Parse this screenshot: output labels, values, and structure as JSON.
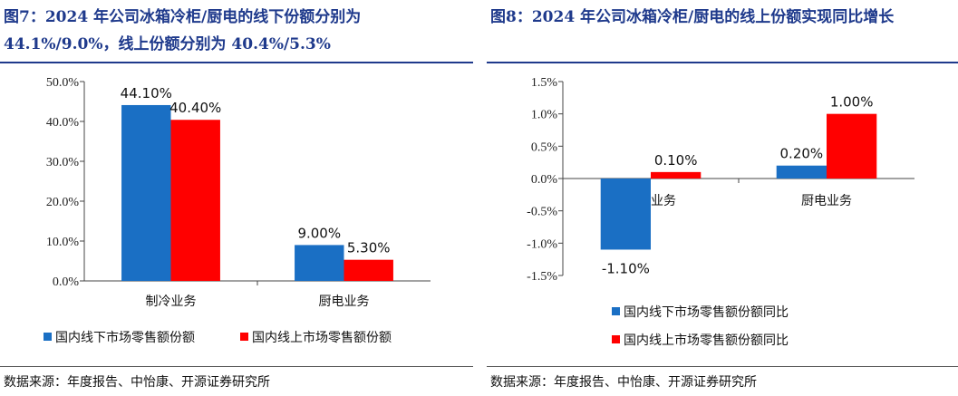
{
  "left": {
    "title": "图7：2024 年公司冰箱冷柜/厨电的线下份额分别为44.1%/9.0%，线上份额分别为 40.4%/5.3%",
    "source": "数据来源：年度报告、中怡康、开源证券研究所"
  },
  "right": {
    "title": "图8：2024 年公司冰箱冷柜/厨电的线上份额实现同比增长",
    "source": "数据来源：年度报告、中怡康、开源证券研究所"
  },
  "chart_data": [
    {
      "type": "bar",
      "categories": [
        "制冷业务",
        "厨电业务"
      ],
      "series": [
        {
          "name": "国内线下市场零售额份额",
          "values": [
            44.1,
            9.0
          ],
          "labels": [
            "44.10%",
            "9.00%"
          ],
          "color": "#1a6fc4"
        },
        {
          "name": "国内线上市场零售额份额",
          "values": [
            40.4,
            5.3
          ],
          "labels": [
            "40.40%",
            "5.30%"
          ],
          "color": "#ff0000"
        }
      ],
      "ylim": [
        0,
        50
      ],
      "yticks": [
        "0.0%",
        "10.0%",
        "20.0%",
        "30.0%",
        "40.0%",
        "50.0%"
      ],
      "legend": "bottom"
    },
    {
      "type": "bar",
      "categories": [
        "制冷业务",
        "厨电业务"
      ],
      "series": [
        {
          "name": "国内线下市场零售额份额同比",
          "values": [
            -1.1,
            0.2
          ],
          "labels": [
            "-1.10%",
            "0.20%"
          ],
          "color": "#1a6fc4"
        },
        {
          "name": "国内线上市场零售额份额同比",
          "values": [
            0.1,
            1.0
          ],
          "labels": [
            "0.10%",
            "1.00%"
          ],
          "color": "#ff0000"
        }
      ],
      "ylim": [
        -1.5,
        1.5
      ],
      "yticks": [
        "-1.5%",
        "-1.0%",
        "-0.5%",
        "0.0%",
        "0.5%",
        "1.0%",
        "1.5%"
      ],
      "legend": "bottom"
    }
  ]
}
